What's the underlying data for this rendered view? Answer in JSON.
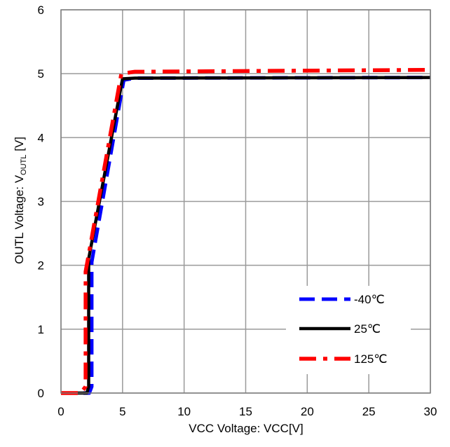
{
  "chart_data": {
    "type": "line",
    "xlabel": "VCC Voltage: VCC[V]",
    "ylabel": {
      "prefix": "OUTL Voltage: V",
      "subscript": "OUTL",
      "suffix": " [V]"
    },
    "xlim": [
      0,
      30
    ],
    "ylim": [
      0,
      6
    ],
    "x_ticks": [
      "0",
      "5",
      "10",
      "15",
      "20",
      "25",
      "30"
    ],
    "y_ticks": [
      "0",
      "1",
      "2",
      "3",
      "4",
      "5",
      "6"
    ],
    "grid": true,
    "legend_position": "bottom-right",
    "series": [
      {
        "name": "-40℃",
        "color": "#0000ff",
        "style": "dashed",
        "points": [
          [
            0,
            0
          ],
          [
            2.3,
            0
          ],
          [
            2.5,
            0.1
          ],
          [
            2.5,
            2.05
          ],
          [
            5.1,
            4.9
          ],
          [
            6,
            4.93
          ],
          [
            30,
            4.94
          ]
        ]
      },
      {
        "name": "25℃",
        "color": "#000000",
        "style": "solid",
        "points": [
          [
            0,
            0
          ],
          [
            2.1,
            0
          ],
          [
            2.25,
            0.1
          ],
          [
            2.25,
            2.1
          ],
          [
            5.0,
            4.92
          ],
          [
            6,
            4.93
          ],
          [
            30,
            4.94
          ]
        ]
      },
      {
        "name": "125℃",
        "color": "#ff0000",
        "style": "dash-dot",
        "points": [
          [
            0,
            0
          ],
          [
            1.6,
            0
          ],
          [
            2.0,
            0.1
          ],
          [
            2.0,
            1.9
          ],
          [
            4.9,
            5.0
          ],
          [
            6,
            5.03
          ],
          [
            30,
            5.06
          ]
        ]
      }
    ]
  }
}
